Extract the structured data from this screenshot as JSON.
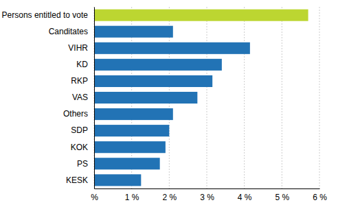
{
  "chart_data": {
    "type": "bar",
    "orientation": "horizontal",
    "categories": [
      "Persons entitled to vote",
      "Canditates",
      "VIHR",
      "KD",
      "RKP",
      "VAS",
      "Others",
      "SDP",
      "KOK",
      "PS",
      "KESK"
    ],
    "values": [
      5.7,
      2.1,
      4.15,
      3.4,
      3.15,
      2.75,
      2.1,
      2.0,
      1.9,
      1.75,
      1.25
    ],
    "colors": [
      "#bcd631",
      "#2273b5",
      "#2273b5",
      "#2273b5",
      "#2273b5",
      "#2273b5",
      "#2273b5",
      "#2273b5",
      "#2273b5",
      "#2273b5",
      "#2273b5"
    ],
    "xlim": [
      0,
      6
    ],
    "xticks": [
      {
        "value": 0,
        "label": "%"
      },
      {
        "value": 1,
        "label": "1 %"
      },
      {
        "value": 2,
        "label": "2 %"
      },
      {
        "value": 3,
        "label": "3 %"
      },
      {
        "value": 4,
        "label": "4 %"
      },
      {
        "value": 5,
        "label": "5 %"
      },
      {
        "value": 6,
        "label": "6 %"
      }
    ],
    "grid": true
  }
}
